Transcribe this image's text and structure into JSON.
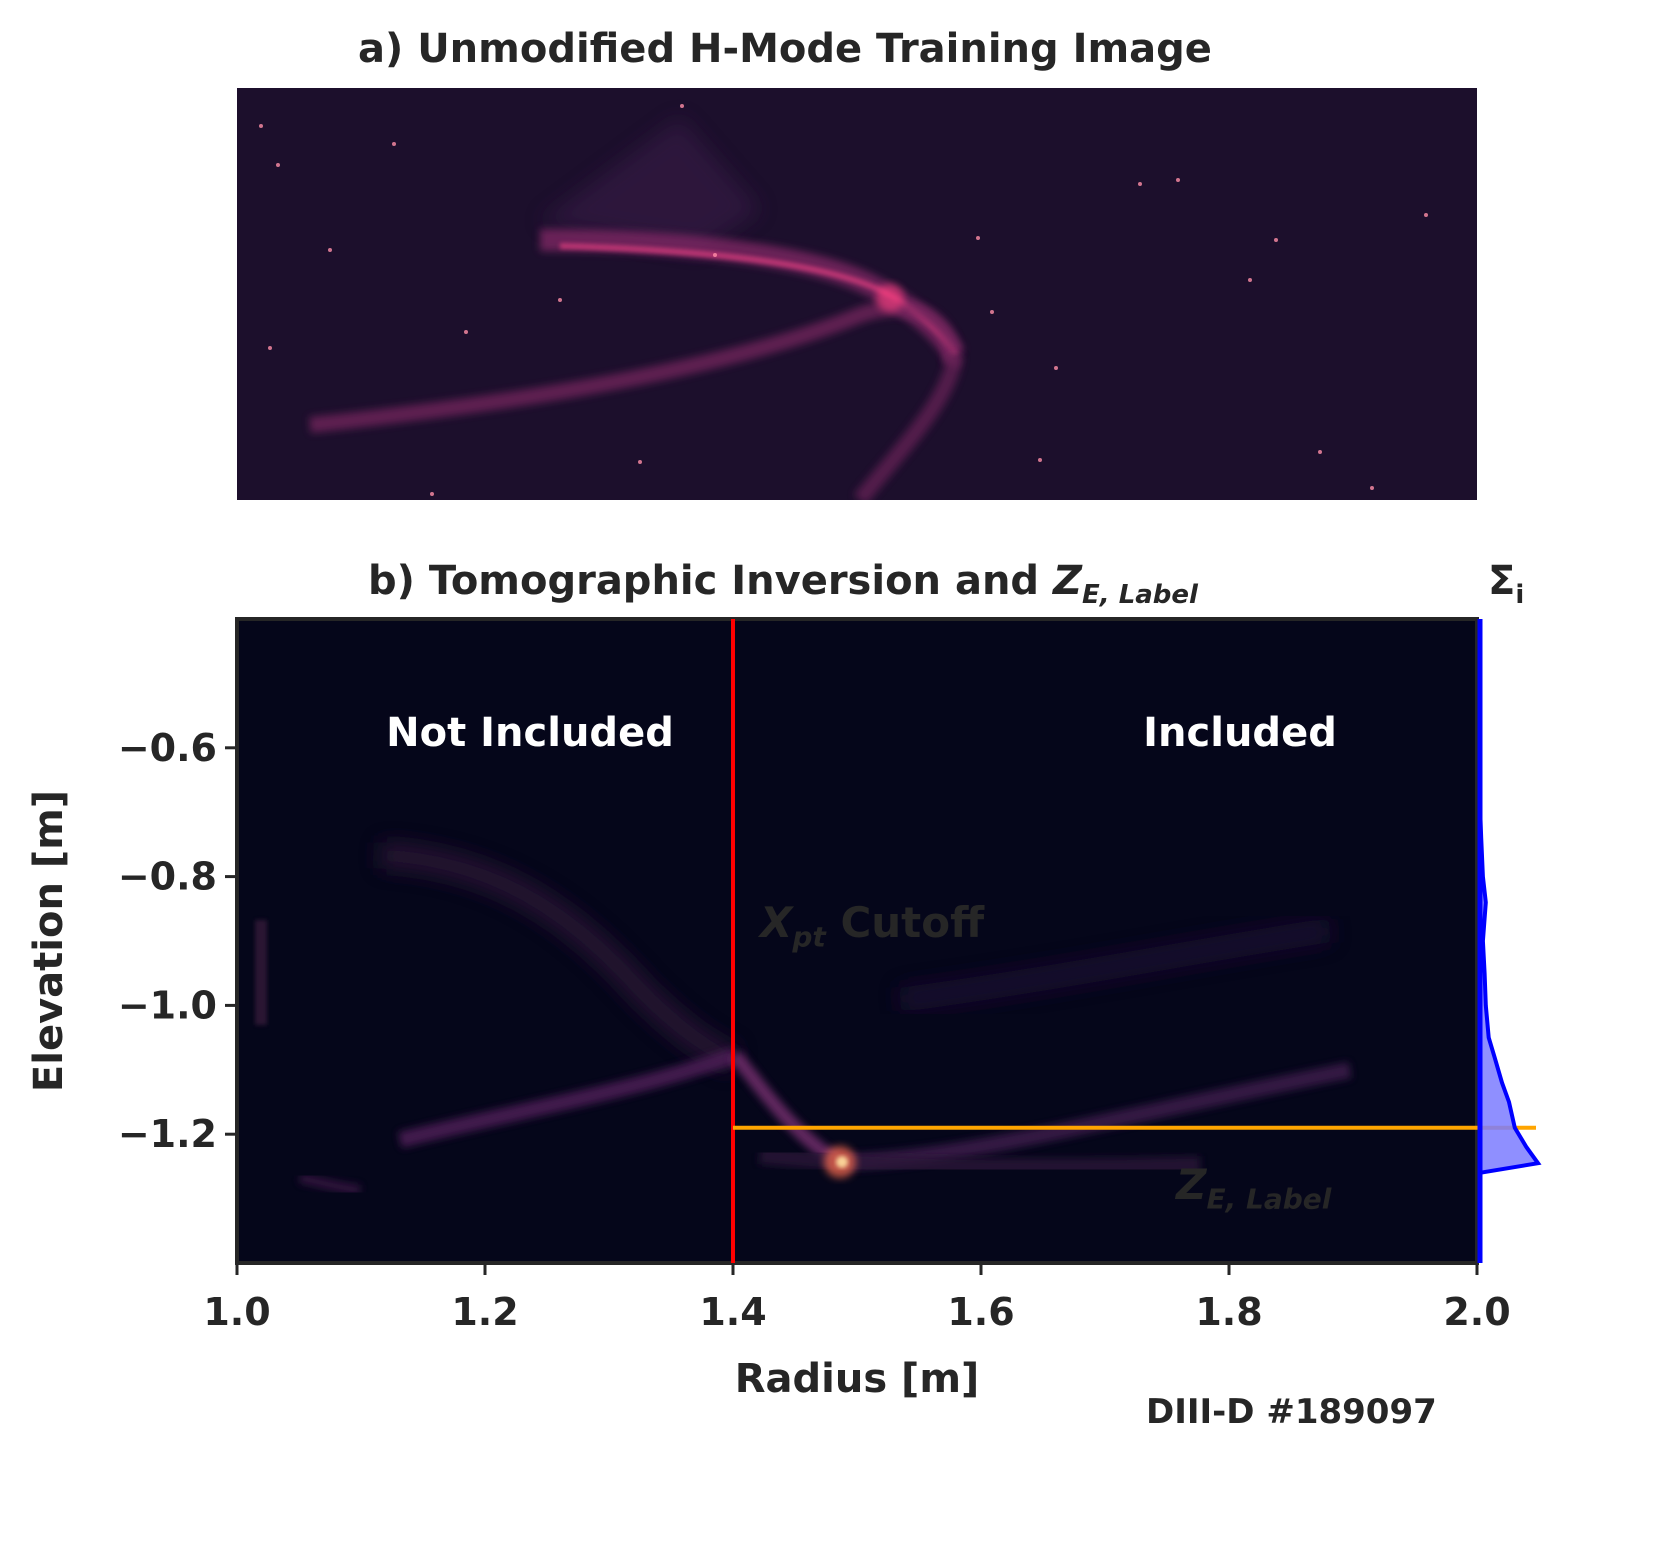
{
  "chart_data": [
    {
      "type": "heatmap",
      "panel": "a",
      "title": "a) Unmodified H-Mode Training Image",
      "axes_visible": false,
      "colormap": "magma"
    },
    {
      "type": "heatmap",
      "panel": "b",
      "title_main": "b) Tomographic Inversion and ",
      "title_math": "Z",
      "title_math_sub": "E, Label",
      "side_panel_title": "Σ",
      "side_panel_title_sub": "i",
      "xlabel": "Radius [m]",
      "ylabel": "Elevation [m]",
      "xlim": [
        1.0,
        2.0
      ],
      "ylim": [
        -1.4,
        -0.4
      ],
      "xticks": [
        1.0,
        1.2,
        1.4,
        1.6,
        1.8,
        2.0
      ],
      "xtick_labels": [
        "1.0",
        "1.2",
        "1.4",
        "1.6",
        "1.8",
        "2.0"
      ],
      "yticks": [
        -0.6,
        -0.8,
        -1.0,
        -1.2
      ],
      "ytick_labels": [
        "−0.6",
        "−0.8",
        "−1.0",
        "−1.2"
      ],
      "colormap": "magma",
      "region_labels": {
        "left": "Not Included",
        "right": "Included"
      },
      "xpt_cutoff": {
        "x": 1.4,
        "label_math": "X",
        "label_sub": "pt",
        "label_text": " Cutoff",
        "color": "#ff0000"
      },
      "z_label": {
        "y": -1.19,
        "label_math": "Z",
        "label_sub": "E, Label",
        "color": "#ffa500"
      },
      "sum_profile": {
        "color": "#0000ff",
        "fill_color": "#7b7bff",
        "y": [
          -0.4,
          -0.69,
          -0.74,
          -0.8,
          -0.84,
          -0.9,
          -0.95,
          -1.0,
          -1.05,
          -1.08,
          -1.12,
          -1.15,
          -1.19,
          -1.22,
          -1.245,
          -1.26,
          -1.4
        ],
        "value": [
          0.0,
          0.0,
          0.02,
          0.05,
          0.1,
          0.05,
          0.08,
          0.1,
          0.15,
          0.25,
          0.38,
          0.5,
          0.6,
          0.8,
          1.0,
          0.0,
          0.0
        ]
      }
    }
  ],
  "credit": "DIII-D #189097"
}
